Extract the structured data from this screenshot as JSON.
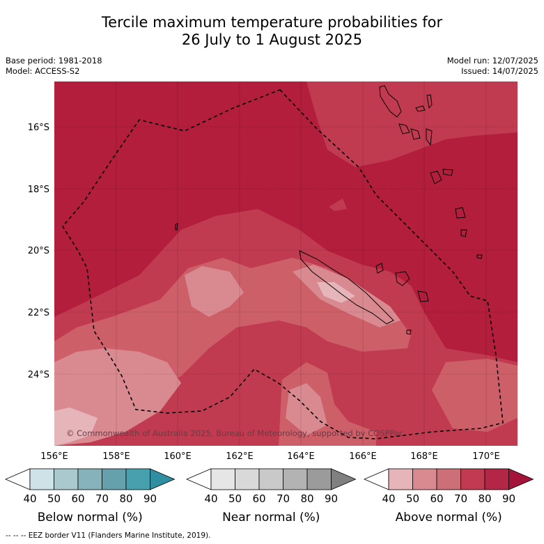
{
  "title": {
    "line1": "Tercile maximum temperature probabilities for",
    "line2": "26 July to 1 August 2025"
  },
  "meta": {
    "base_period": "Base period: 1981-2018",
    "model": "Model: ACCESS-S2",
    "model_run": "Model run: 12/07/2025",
    "issued": "Issued: 14/07/2025"
  },
  "map": {
    "latitudes": [
      "16°S",
      "18°S",
      "20°S",
      "22°S",
      "24°S"
    ],
    "longitudes": [
      "156°E",
      "158°E",
      "160°E",
      "162°E",
      "164°E",
      "166°E",
      "168°E",
      "170°E"
    ],
    "copyright": "© Commonwealth of Australia 2025, Bureau of Meteorology, supported by COSPPac",
    "colors": {
      "above_80": "#b21e3c",
      "above_70": "#c13b50",
      "above_60": "#cd5f69",
      "above_50": "#d98a91",
      "above_40": "#e6b5ba"
    }
  },
  "colorbars": [
    {
      "label": "Below normal (%)",
      "ticks": [
        "40",
        "50",
        "60",
        "70",
        "80",
        "90"
      ],
      "colors": [
        "#ffffff",
        "#cde3e8",
        "#a9c9cf",
        "#86b2bb",
        "#64a1ad",
        "#46a0ae",
        "#2f8fa0"
      ]
    },
    {
      "label": "Near normal (%)",
      "ticks": [
        "40",
        "50",
        "60",
        "70",
        "80",
        "90"
      ],
      "colors": [
        "#ffffff",
        "#e6e6e6",
        "#d9d9d9",
        "#c9c9c9",
        "#b3b3b3",
        "#9b9b9b",
        "#808080"
      ]
    },
    {
      "label": "Above normal (%)",
      "ticks": [
        "40",
        "50",
        "60",
        "70",
        "80",
        "90"
      ],
      "colors": [
        "#ffffff",
        "#e6b5ba",
        "#d98a91",
        "#cd6f76",
        "#c13b50",
        "#b32645",
        "#a4133a"
      ]
    }
  ],
  "footer": "--  --  -- EEZ border V11 (Flanders Marine Institute, 2019)."
}
